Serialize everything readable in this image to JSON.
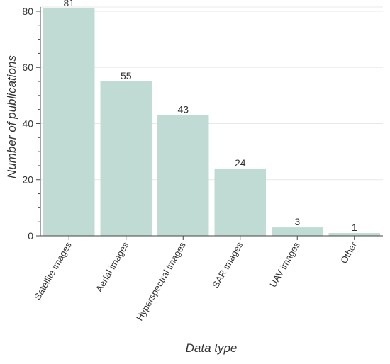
{
  "chart_data": {
    "type": "bar",
    "categories": [
      "Satellite images",
      "Aerial images",
      "Hyperspectral images",
      "SAR images",
      "UAV images",
      "Other"
    ],
    "values": [
      81,
      55,
      43,
      24,
      3,
      1
    ],
    "data_labels": [
      "81",
      "55",
      "43",
      "24",
      "3",
      "1"
    ],
    "xlabel": "Data type",
    "ylabel": "Number of publications",
    "ylim": [
      0,
      81.5
    ],
    "yticks": [
      0,
      20,
      40,
      60,
      80
    ],
    "ytick_labels": [
      "0",
      "20",
      "40",
      "60",
      "80"
    ],
    "grid": "horizontal",
    "bar_color": "#bfdbd3",
    "grid_color": "#e8e8e8",
    "axis_color": "#444444",
    "label_color": "#333333"
  }
}
